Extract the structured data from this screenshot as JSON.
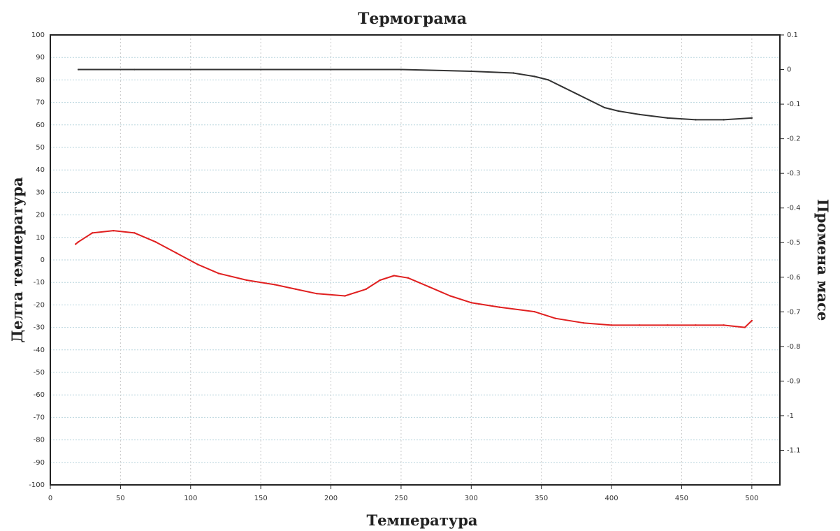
{
  "chart_data": {
    "type": "line",
    "title": "Термограма",
    "xlabel": "Температура",
    "ylabel_left": "Делта температура",
    "ylabel_right": "Промена масе",
    "xlim": [
      0,
      520
    ],
    "ylim_left": [
      -100,
      100
    ],
    "ylim_right": [
      -1.2,
      0.1
    ],
    "x_ticks": [
      "0",
      "50",
      "100",
      "150",
      "200",
      "250",
      "300",
      "350",
      "400",
      "450",
      "500"
    ],
    "y_left_ticks": [
      "100",
      "90",
      "80",
      "70",
      "60",
      "50",
      "40",
      "30",
      "20",
      "10",
      "0",
      "-10",
      "-20",
      "-30",
      "-40",
      "-50",
      "-60",
      "-70",
      "-80",
      "-90",
      "-100"
    ],
    "y_right_ticks": [
      "0.1",
      "0",
      "-0.1",
      "-0.2",
      "-0.3",
      "-0.4",
      "-0.5",
      "-0.6",
      "-0.7",
      "-0.8",
      "-0.9",
      "-1",
      "-1.1"
    ],
    "grid": true,
    "series": [
      {
        "axis": "right",
        "color": "#333333",
        "x": [
          20,
          60,
          100,
          150,
          200,
          250,
          300,
          330,
          345,
          355,
          365,
          375,
          385,
          395,
          405,
          420,
          440,
          460,
          480,
          500
        ],
        "y": [
          0,
          0,
          0,
          0,
          0,
          0,
          -0.005,
          -0.01,
          -0.02,
          -0.03,
          -0.05,
          -0.07,
          -0.09,
          -0.11,
          -0.12,
          -0.13,
          -0.14,
          -0.145,
          -0.145,
          -0.14
        ]
      },
      {
        "axis": "left",
        "color": "#e02020",
        "x": [
          18,
          20,
          30,
          45,
          60,
          75,
          90,
          105,
          120,
          140,
          160,
          175,
          190,
          210,
          225,
          235,
          245,
          255,
          270,
          285,
          300,
          320,
          345,
          360,
          380,
          400,
          420,
          440,
          460,
          480,
          495,
          500
        ],
        "y": [
          7,
          8,
          12,
          13,
          12,
          8,
          3,
          -2,
          -6,
          -9,
          -11,
          -13,
          -15,
          -16,
          -13,
          -9,
          -7,
          -8,
          -12,
          -16,
          -19,
          -21,
          -23,
          -26,
          -28,
          -29,
          -29,
          -29,
          -29,
          -29,
          -30,
          -27
        ]
      }
    ]
  }
}
